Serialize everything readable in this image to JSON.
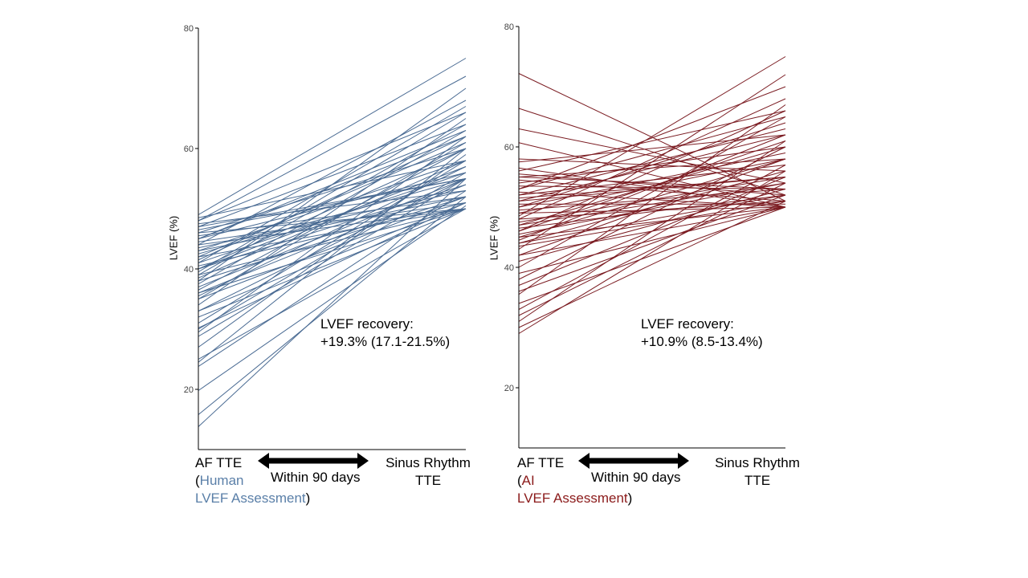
{
  "chart_data": [
    {
      "type": "line",
      "ylabel": "LVEF (%)",
      "ylim": [
        10,
        80
      ],
      "yticks": [
        20,
        40,
        60,
        80
      ],
      "x": [
        "AF TTE",
        "Sinus Rhythm TTE"
      ],
      "color": "#4a6b93",
      "annotation": [
        "LVEF recovery:",
        "+19.3% (17.1-21.5%)"
      ],
      "xcaption": {
        "left_line1": "AF TTE",
        "left_line2_open": "(",
        "left_line2_colored": "Human",
        "left_line3_colored": "LVEF Assessment",
        "left_line3_close": ")",
        "middle": "Within 90 days",
        "right_line1": "Sinus Rhythm",
        "right_line2": "TTE"
      },
      "series": [
        {
          "values": [
            13.8,
            55
          ]
        },
        {
          "values": [
            15.8,
            52
          ]
        },
        {
          "values": [
            19.8,
            50.5
          ]
        },
        {
          "values": [
            23.8,
            53
          ]
        },
        {
          "values": [
            24.5,
            60
          ]
        },
        {
          "values": [
            25,
            50
          ]
        },
        {
          "values": [
            28.8,
            55
          ]
        },
        {
          "values": [
            29.5,
            62
          ]
        },
        {
          "values": [
            30.2,
            51
          ]
        },
        {
          "values": [
            31,
            58
          ]
        },
        {
          "values": [
            32,
            50
          ]
        },
        {
          "values": [
            33,
            55
          ]
        },
        {
          "values": [
            34,
            65
          ]
        },
        {
          "values": [
            35,
            52
          ]
        },
        {
          "values": [
            35.5,
            57
          ]
        },
        {
          "values": [
            36,
            50
          ]
        },
        {
          "values": [
            36.5,
            60
          ]
        },
        {
          "values": [
            37,
            55
          ]
        },
        {
          "values": [
            37.5,
            63
          ]
        },
        {
          "values": [
            38,
            52
          ]
        },
        {
          "values": [
            38.5,
            58
          ]
        },
        {
          "values": [
            39,
            50
          ]
        },
        {
          "values": [
            39.5,
            66
          ]
        },
        {
          "values": [
            40,
            54
          ]
        },
        {
          "values": [
            40,
            60
          ]
        },
        {
          "values": [
            40.5,
            51
          ]
        },
        {
          "values": [
            41,
            56
          ]
        },
        {
          "values": [
            41.5,
            62
          ]
        },
        {
          "values": [
            42,
            50
          ]
        },
        {
          "values": [
            42.5,
            55
          ]
        },
        {
          "values": [
            43,
            58
          ]
        },
        {
          "values": [
            43.5,
            53
          ]
        },
        {
          "values": [
            44,
            68
          ]
        },
        {
          "values": [
            44.5,
            51
          ]
        },
        {
          "values": [
            45,
            56
          ]
        },
        {
          "values": [
            45,
            62
          ]
        },
        {
          "values": [
            45.5,
            52
          ]
        },
        {
          "values": [
            46,
            60
          ]
        },
        {
          "values": [
            46.5,
            55
          ]
        },
        {
          "values": [
            47,
            64
          ]
        },
        {
          "values": [
            47.5,
            53
          ]
        },
        {
          "values": [
            48,
            72
          ]
        },
        {
          "values": [
            48.5,
            58
          ]
        },
        {
          "values": [
            49,
            75
          ]
        },
        {
          "values": [
            44,
            50
          ]
        },
        {
          "values": [
            42,
            61
          ]
        },
        {
          "values": [
            38,
            70
          ]
        },
        {
          "values": [
            41,
            67
          ]
        },
        {
          "values": [
            46,
            50
          ]
        },
        {
          "values": [
            36,
            54
          ]
        },
        {
          "values": [
            33,
            51
          ]
        },
        {
          "values": [
            27,
            59
          ]
        },
        {
          "values": [
            45,
            63
          ]
        },
        {
          "values": [
            40,
            57
          ]
        },
        {
          "values": [
            43,
            52
          ]
        },
        {
          "values": [
            48,
            66
          ]
        },
        {
          "values": [
            35,
            61
          ]
        },
        {
          "values": [
            30,
            56
          ]
        },
        {
          "values": [
            47,
            55
          ]
        },
        {
          "values": [
            39,
            64
          ]
        }
      ]
    },
    {
      "type": "line",
      "ylabel": "LVEF (%)",
      "ylim": [
        10,
        80
      ],
      "yticks": [
        20,
        40,
        60,
        80
      ],
      "x": [
        "AF TTE",
        "Sinus Rhythm TTE"
      ],
      "color": "#7b1c22",
      "annotation": [
        "LVEF recovery:",
        "+10.9% (8.5-13.4%)"
      ],
      "xcaption": {
        "left_line1": "AF TTE",
        "left_line2_open": "(",
        "left_line2_colored": "AI",
        "left_line3_colored": "LVEF Assessment",
        "left_line3_close": ")",
        "middle": "Within 90 days",
        "right_line1": "Sinus Rhythm",
        "right_line2": "TTE"
      },
      "series": [
        {
          "values": [
            72.2,
            51
          ]
        },
        {
          "values": [
            66.4,
            52
          ]
        },
        {
          "values": [
            63,
            54
          ]
        },
        {
          "values": [
            60.7,
            50
          ]
        },
        {
          "values": [
            58,
            56
          ]
        },
        {
          "values": [
            57.5,
            62
          ]
        },
        {
          "values": [
            56.5,
            50
          ]
        },
        {
          "values": [
            56,
            66
          ]
        },
        {
          "values": [
            55.5,
            52
          ]
        },
        {
          "values": [
            55,
            58
          ]
        },
        {
          "values": [
            54.5,
            51
          ]
        },
        {
          "values": [
            54,
            60
          ]
        },
        {
          "values": [
            53.5,
            53
          ]
        },
        {
          "values": [
            53,
            70
          ]
        },
        {
          "values": [
            52.5,
            50
          ]
        },
        {
          "values": [
            52,
            57
          ]
        },
        {
          "values": [
            51.5,
            55
          ]
        },
        {
          "values": [
            51,
            62
          ]
        },
        {
          "values": [
            50.5,
            50.5
          ]
        },
        {
          "values": [
            50,
            64
          ]
        },
        {
          "values": [
            49.5,
            53
          ]
        },
        {
          "values": [
            49,
            58
          ]
        },
        {
          "values": [
            48.5,
            75
          ]
        },
        {
          "values": [
            48,
            51
          ]
        },
        {
          "values": [
            47.5,
            55
          ]
        },
        {
          "values": [
            47,
            60
          ]
        },
        {
          "values": [
            46.5,
            52
          ]
        },
        {
          "values": [
            46,
            66
          ]
        },
        {
          "values": [
            45.5,
            54
          ]
        },
        {
          "values": [
            45,
            50
          ]
        },
        {
          "values": [
            44.5,
            62
          ]
        },
        {
          "values": [
            44,
            56
          ]
        },
        {
          "values": [
            43.5,
            51
          ]
        },
        {
          "values": [
            43,
            72
          ]
        },
        {
          "values": [
            42,
            58
          ]
        },
        {
          "values": [
            41,
            53
          ]
        },
        {
          "values": [
            40,
            65
          ]
        },
        {
          "values": [
            39,
            50
          ]
        },
        {
          "values": [
            38,
            60
          ]
        },
        {
          "values": [
            37,
            55
          ]
        },
        {
          "values": [
            36,
            52
          ]
        },
        {
          "values": [
            35.5,
            67
          ]
        },
        {
          "values": [
            34,
            50
          ]
        },
        {
          "values": [
            33,
            57
          ]
        },
        {
          "values": [
            32,
            54
          ]
        },
        {
          "values": [
            31,
            61
          ]
        },
        {
          "values": [
            30,
            51
          ]
        },
        {
          "values": [
            29,
            56
          ]
        },
        {
          "values": [
            50,
            59
          ]
        },
        {
          "values": [
            48,
            68
          ]
        },
        {
          "values": [
            46,
            61
          ]
        },
        {
          "values": [
            52,
            63
          ]
        },
        {
          "values": [
            44,
            52
          ]
        },
        {
          "values": [
            51,
            55
          ]
        },
        {
          "values": [
            49,
            50
          ]
        },
        {
          "values": [
            53,
            65
          ]
        },
        {
          "values": [
            47,
            54
          ]
        },
        {
          "values": [
            45,
            58
          ]
        },
        {
          "values": [
            42,
            50
          ]
        },
        {
          "values": [
            55,
            53
          ]
        }
      ]
    }
  ]
}
